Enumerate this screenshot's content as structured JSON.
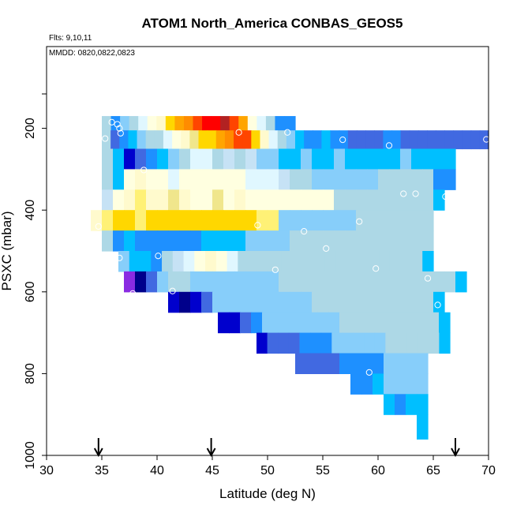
{
  "chart_data": {
    "type": "heatmap",
    "title": "ATOM1 North_America CONBAS_GEOS5",
    "annotations": [
      "Flts: 9,10,11",
      "MMDD: 0820,0822,0823"
    ],
    "xlabel": "Latitude (deg N)",
    "ylabel": "PSXC (mbar)",
    "xlim": [
      30,
      70
    ],
    "ylim": [
      1000,
      0
    ],
    "y_reversed": true,
    "xticks": [
      "30",
      "35",
      "40",
      "45",
      "50",
      "55",
      "60",
      "65",
      "70"
    ],
    "yticks": [
      "200",
      "400",
      "600",
      "800",
      "1000"
    ],
    "arrow_markers_latitude": [
      34.7,
      44.9,
      67.0
    ],
    "colors": {
      "darkviolet": "#8a2be2",
      "darkblue": "#00008b",
      "mediumblue": "#0000cd",
      "royalblue": "#4169e1",
      "dodgerblue": "#1e90ff",
      "deepskyblue": "#00bfff",
      "lightskyblue": "#87cefa",
      "lightblue": "#add8e6",
      "paleblue": "#c6e2f5",
      "azure": "#e0f7ff",
      "lightyellow": "#ffffe0",
      "lemon": "#fffacd",
      "khaki": "#f0e68c",
      "yellow": "#fff176",
      "gold": "#ffd700",
      "orange": "#ffa500",
      "darkorange": "#ff8c00",
      "orangered": "#ff4500",
      "red": "#ff0000",
      "darkred": "#b22222",
      "brownred": "#a52a2a"
    },
    "cells": [
      {
        "x0": 35.0,
        "x1": 51.5,
        "p0": 170,
        "p1": 205,
        "colors": [
          "lightblue",
          "dodgerblue",
          "lightskyblue",
          "lightblue",
          "azure",
          "lightyellow",
          "lemon",
          "gold",
          "orange",
          "darkorange",
          "orangered",
          "red",
          "red",
          "darkred",
          "orangered",
          "orange",
          "lightyellow",
          "azure",
          "lightblue",
          "dodgerblue"
        ]
      },
      {
        "x0": 51.5,
        "x1": 52.5,
        "p0": 170,
        "p1": 205,
        "colors": [
          "dodgerblue"
        ]
      },
      {
        "x0": 35.0,
        "x1": 70.0,
        "p0": 205,
        "p1": 250,
        "colors": [
          "lightblue",
          "royalblue",
          "dodgerblue",
          "deepskyblue",
          "lightskyblue",
          "lightblue",
          "lightblue",
          "azure",
          "lightyellow",
          "lemon",
          "khaki",
          "gold",
          "gold",
          "orange",
          "darkorange",
          "orangered",
          "orangered",
          "gold",
          "lemon",
          "azure",
          "lightblue",
          "lightskyblue",
          "deepskyblue",
          "dodgerblue",
          "dodgerblue",
          "deepskyblue",
          "dodgerblue",
          "dodgerblue",
          "royalblue",
          "royalblue",
          "royalblue",
          "royalblue",
          "dodgerblue",
          "dodgerblue",
          "royalblue",
          "royalblue",
          "royalblue",
          "royalblue",
          "royalblue",
          "royalblue",
          "royalblue",
          "royalblue",
          "royalblue",
          "royalblue"
        ]
      },
      {
        "x0": 35.0,
        "x1": 67.0,
        "p0": 250,
        "p1": 300,
        "colors": [
          "lightblue",
          "deepskyblue",
          "mediumblue",
          "royalblue",
          "dodgerblue",
          "deepskyblue",
          "lightskyblue",
          "lightblue",
          "azure",
          "azure",
          "lightblue",
          "paleblue",
          "lightblue",
          "paleblue",
          "lightskyblue",
          "lightskyblue",
          "deepskyblue",
          "deepskyblue",
          "lightskyblue",
          "deepskyblue",
          "deepskyblue",
          "lightskyblue",
          "deepskyblue",
          "deepskyblue",
          "deepskyblue",
          "deepskyblue",
          "deepskyblue",
          "lightskyblue",
          "deepskyblue",
          "deepskyblue",
          "deepskyblue",
          "deepskyblue"
        ]
      },
      {
        "x0": 35.0,
        "x1": 67.0,
        "p0": 300,
        "p1": 350,
        "colors": [
          "lightblue",
          "deepskyblue",
          "lightyellow",
          "lemon",
          "lightyellow",
          "lightyellow",
          "azure",
          "lightyellow",
          "lightyellow",
          "lightyellow",
          "lightyellow",
          "lightyellow",
          "lightyellow",
          "azure",
          "azure",
          "azure",
          "paleblue",
          "lightblue",
          "lightblue",
          "lightskyblue",
          "lightskyblue",
          "lightskyblue",
          "lightskyblue",
          "lightskyblue",
          "lightskyblue",
          "lightblue",
          "lightblue",
          "lightblue",
          "lightblue",
          "lightblue",
          "dodgerblue",
          "dodgerblue"
        ]
      },
      {
        "x0": 35.0,
        "x1": 66.0,
        "p0": 350,
        "p1": 400,
        "colors": [
          "paleblue",
          "lightyellow",
          "lemon",
          "yellow",
          "lemon",
          "lemon",
          "khaki",
          "lemon",
          "lightyellow",
          "lightyellow",
          "khaki",
          "lightyellow",
          "lemon",
          "lightyellow",
          "lightyellow",
          "lightyellow",
          "lightyellow",
          "lightyellow",
          "lightyellow",
          "lightyellow",
          "lightyellow",
          "lightblue",
          "lightblue",
          "lightblue",
          "lightblue",
          "lightblue",
          "lightblue",
          "lightblue",
          "lightblue",
          "lightblue",
          "deepskyblue"
        ]
      },
      {
        "x0": 34.0,
        "x1": 65.0,
        "p0": 400,
        "p1": 450,
        "colors": [
          "lemon",
          "yellow",
          "gold",
          "gold",
          "yellow",
          "gold",
          "gold",
          "gold",
          "gold",
          "gold",
          "gold",
          "gold",
          "gold",
          "gold",
          "gold",
          "yellow",
          "yellow",
          "lightskyblue",
          "lightskyblue",
          "lightskyblue",
          "lightskyblue",
          "lightskyblue",
          "lightskyblue",
          "lightskyblue",
          "lightblue",
          "lightblue",
          "lightblue",
          "lightblue",
          "lightblue",
          "lightblue",
          "lightblue"
        ]
      },
      {
        "x0": 35.0,
        "x1": 65.0,
        "p0": 450,
        "p1": 500,
        "colors": [
          "lightblue",
          "dodgerblue",
          "deepskyblue",
          "dodgerblue",
          "dodgerblue",
          "dodgerblue",
          "dodgerblue",
          "dodgerblue",
          "dodgerblue",
          "deepskyblue",
          "deepskyblue",
          "deepskyblue",
          "deepskyblue",
          "lightskyblue",
          "lightskyblue",
          "lightskyblue",
          "lightskyblue",
          "lightblue",
          "lightblue",
          "lightblue",
          "lightblue",
          "lightblue",
          "lightblue",
          "lightblue",
          "lightblue",
          "lightblue",
          "lightblue",
          "lightblue",
          "lightblue",
          "lightblue"
        ]
      },
      {
        "x0": 36.5,
        "x1": 65.0,
        "p0": 500,
        "p1": 550,
        "colors": [
          "lightskyblue",
          "deepskyblue",
          "deepskyblue",
          "dodgerblue",
          "lightblue",
          "paleblue",
          "azure",
          "lightyellow",
          "lemon",
          "lightyellow",
          "azure",
          "lightblue",
          "lightblue",
          "lightblue",
          "lightblue",
          "lightblue",
          "lightblue",
          "lightblue",
          "lightblue",
          "lightblue",
          "lightblue",
          "lightblue",
          "lightblue",
          "lightblue",
          "lightblue",
          "lightblue",
          "lightblue",
          "lightblue",
          "deepskyblue"
        ]
      },
      {
        "x0": 37.0,
        "x1": 68.0,
        "p0": 550,
        "p1": 600,
        "colors": [
          "darkviolet",
          "darkblue",
          "royalblue",
          "lightskyblue",
          "lightblue",
          "lightblue",
          "lightskyblue",
          "lightskyblue",
          "lightskyblue",
          "lightskyblue",
          "lightskyblue",
          "lightskyblue",
          "lightskyblue",
          "lightskyblue",
          "lightblue",
          "lightblue",
          "lightblue",
          "lightblue",
          "lightblue",
          "lightblue",
          "lightblue",
          "lightblue",
          "lightblue",
          "lightblue",
          "lightblue",
          "lightblue",
          "lightblue",
          "lightblue",
          "lightblue",
          "lightblue",
          "deepskyblue"
        ]
      },
      {
        "x0": 41.0,
        "x1": 66.0,
        "p0": 600,
        "p1": 650,
        "colors": [
          "mediumblue",
          "darkblue",
          "mediumblue",
          "royalblue",
          "lightskyblue",
          "lightskyblue",
          "lightskyblue",
          "lightskyblue",
          "lightskyblue",
          "lightskyblue",
          "lightskyblue",
          "lightskyblue",
          "lightskyblue",
          "lightblue",
          "lightblue",
          "lightblue",
          "lightblue",
          "lightblue",
          "lightblue",
          "lightblue",
          "lightblue",
          "lightblue",
          "lightblue",
          "lightblue",
          "deepskyblue"
        ]
      },
      {
        "x0": 45.5,
        "x1": 66.5,
        "p0": 650,
        "p1": 700,
        "colors": [
          "mediumblue",
          "mediumblue",
          "royalblue",
          "dodgerblue",
          "lightskyblue",
          "lightskyblue",
          "lightskyblue",
          "lightskyblue",
          "lightskyblue",
          "lightskyblue",
          "lightskyblue",
          "lightblue",
          "lightblue",
          "lightblue",
          "lightblue",
          "lightblue",
          "lightblue",
          "lightblue",
          "lightblue",
          "lightblue",
          "deepskyblue"
        ]
      },
      {
        "x0": 49.0,
        "x1": 66.5,
        "p0": 700,
        "p1": 750,
        "colors": [
          "mediumblue",
          "royalblue",
          "royalblue",
          "royalblue",
          "dodgerblue",
          "dodgerblue",
          "dodgerblue",
          "lightskyblue",
          "lightskyblue",
          "lightskyblue",
          "lightskyblue",
          "lightskyblue",
          "lightblue",
          "lightblue",
          "lightblue",
          "lightblue",
          "lightblue",
          "deepskyblue"
        ]
      },
      {
        "x0": 52.5,
        "x1": 64.5,
        "p0": 750,
        "p1": 800,
        "colors": [
          "royalblue",
          "royalblue",
          "royalblue",
          "royalblue",
          "dodgerblue",
          "dodgerblue",
          "dodgerblue",
          "dodgerblue",
          "lightskyblue",
          "lightskyblue",
          "lightskyblue",
          "lightskyblue"
        ]
      },
      {
        "x0": 57.5,
        "x1": 64.5,
        "p0": 800,
        "p1": 850,
        "colors": [
          "dodgerblue",
          "dodgerblue",
          "deepskyblue",
          "lightskyblue",
          "lightskyblue",
          "lightskyblue",
          "lightskyblue"
        ]
      },
      {
        "x0": 60.5,
        "x1": 64.5,
        "p0": 850,
        "p1": 900,
        "colors": [
          "deepskyblue",
          "dodgerblue",
          "deepskyblue",
          "deepskyblue"
        ]
      },
      {
        "x0": 63.5,
        "x1": 64.5,
        "p0": 900,
        "p1": 960,
        "colors": [
          "deepskyblue"
        ]
      }
    ],
    "points": [
      {
        "lat": 35.9,
        "p": 185
      },
      {
        "lat": 36.4,
        "p": 190
      },
      {
        "lat": 36.6,
        "p": 200
      },
      {
        "lat": 36.7,
        "p": 212
      },
      {
        "lat": 35.3,
        "p": 225
      },
      {
        "lat": 47.4,
        "p": 210
      },
      {
        "lat": 51.8,
        "p": 210
      },
      {
        "lat": 56.8,
        "p": 228
      },
      {
        "lat": 61.0,
        "p": 242
      },
      {
        "lat": 69.8,
        "p": 227
      },
      {
        "lat": 38.8,
        "p": 302
      },
      {
        "lat": 62.3,
        "p": 360
      },
      {
        "lat": 63.4,
        "p": 360
      },
      {
        "lat": 66.1,
        "p": 367
      },
      {
        "lat": 58.3,
        "p": 428
      },
      {
        "lat": 34.7,
        "p": 440
      },
      {
        "lat": 49.1,
        "p": 437
      },
      {
        "lat": 53.3,
        "p": 452
      },
      {
        "lat": 55.3,
        "p": 494
      },
      {
        "lat": 36.6,
        "p": 517
      },
      {
        "lat": 40.1,
        "p": 512
      },
      {
        "lat": 50.7,
        "p": 546
      },
      {
        "lat": 59.8,
        "p": 543
      },
      {
        "lat": 64.5,
        "p": 567
      },
      {
        "lat": 37.8,
        "p": 604
      },
      {
        "lat": 41.4,
        "p": 598
      },
      {
        "lat": 65.4,
        "p": 632
      },
      {
        "lat": 59.2,
        "p": 797
      },
      {
        "lat": 64.9,
        "p": 945
      }
    ]
  }
}
